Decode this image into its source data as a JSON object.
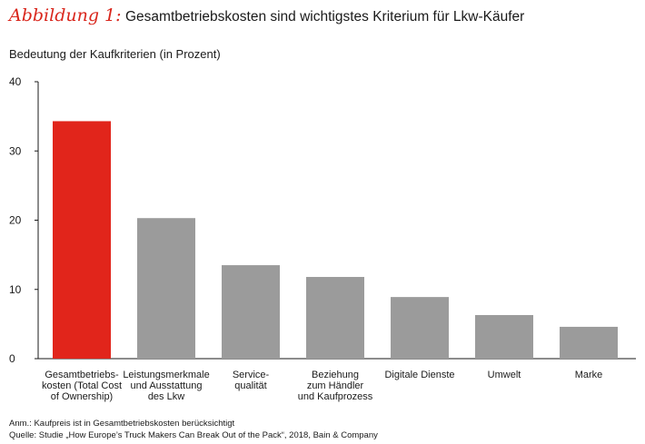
{
  "header": {
    "figure_label": "Abbildung 1:",
    "title": "Gesamtbetriebskosten sind wichtigstes Kriterium für Lkw-Käufer"
  },
  "footnotes": {
    "note": "Anm.: Kaufpreis ist in Gesamtbetriebskosten berücksichtigt",
    "source": "Quelle: Studie „How Europe’s Truck Makers Can Break Out of the Pack“, 2018, Bain & Company"
  },
  "colors": {
    "highlight": "#e1251b",
    "bar": "#9b9b9b",
    "axis": "#1a1a1a",
    "label_accent": "#d9261c"
  },
  "chart_data": {
    "type": "bar",
    "title": "Bedeutung der Kaufkriterien (in Prozent)",
    "xlabel": "",
    "ylabel": "",
    "ylim": [
      0,
      40
    ],
    "yticks": [
      0,
      10,
      20,
      30,
      40
    ],
    "grid": false,
    "categories": [
      [
        "Gesamtbetriebs-",
        "kosten (Total Cost",
        "of Ownership)"
      ],
      [
        "Leistungsmerkmale",
        "und Ausstattung",
        "des Lkw"
      ],
      [
        "Service-",
        "qualität"
      ],
      [
        "Beziehung",
        "zum Händler",
        "und Kaufprozess"
      ],
      [
        "Digitale Dienste"
      ],
      [
        "Umwelt"
      ],
      [
        "Marke"
      ]
    ],
    "values": [
      34.3,
      20.3,
      13.5,
      11.8,
      8.9,
      6.3,
      4.6
    ],
    "highlight_index": 0
  }
}
